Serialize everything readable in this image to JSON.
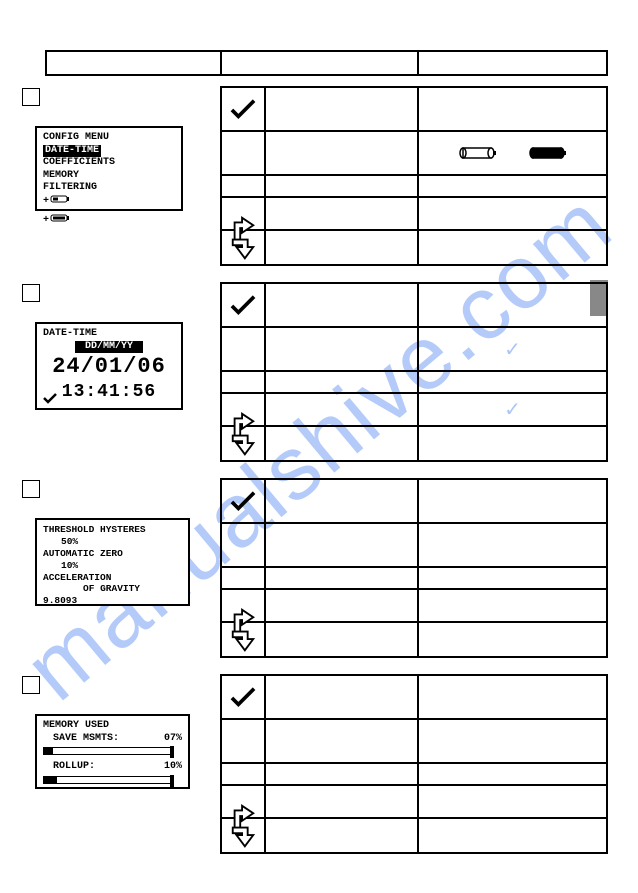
{
  "watermark_text": "manualshive.com",
  "section1": {
    "lcd": {
      "title": "CONFIG MENU",
      "item_hl": "DATE-TIME",
      "item2": "COEFFICIENTS",
      "item3": "MEMORY",
      "item4": "FILTERING"
    }
  },
  "section2": {
    "lcd": {
      "title": "DATE-TIME",
      "fmt": "DD/MM/YY",
      "date": "24/01/06",
      "time": "13:41:56"
    }
  },
  "section3": {
    "lcd": {
      "l1": "THRESHOLD HYSTERES",
      "v1": "50%",
      "l2": "AUTOMATIC ZERO",
      "v2": "10%",
      "l3": "ACCELERATION",
      "l3b": "OF GRAVITY",
      "v3": "9.8093"
    }
  },
  "section4": {
    "lcd": {
      "title": "MEMORY USED",
      "row1_label": "SAVE MSMTS:",
      "row1_val": "07%",
      "row1_pct": 7,
      "row2_label": "ROLLUP:",
      "row2_val": "10%",
      "row2_pct": 10
    }
  },
  "colors": {
    "watermark": "#5b8df2",
    "border": "#000000",
    "bg": "#ffffff"
  }
}
